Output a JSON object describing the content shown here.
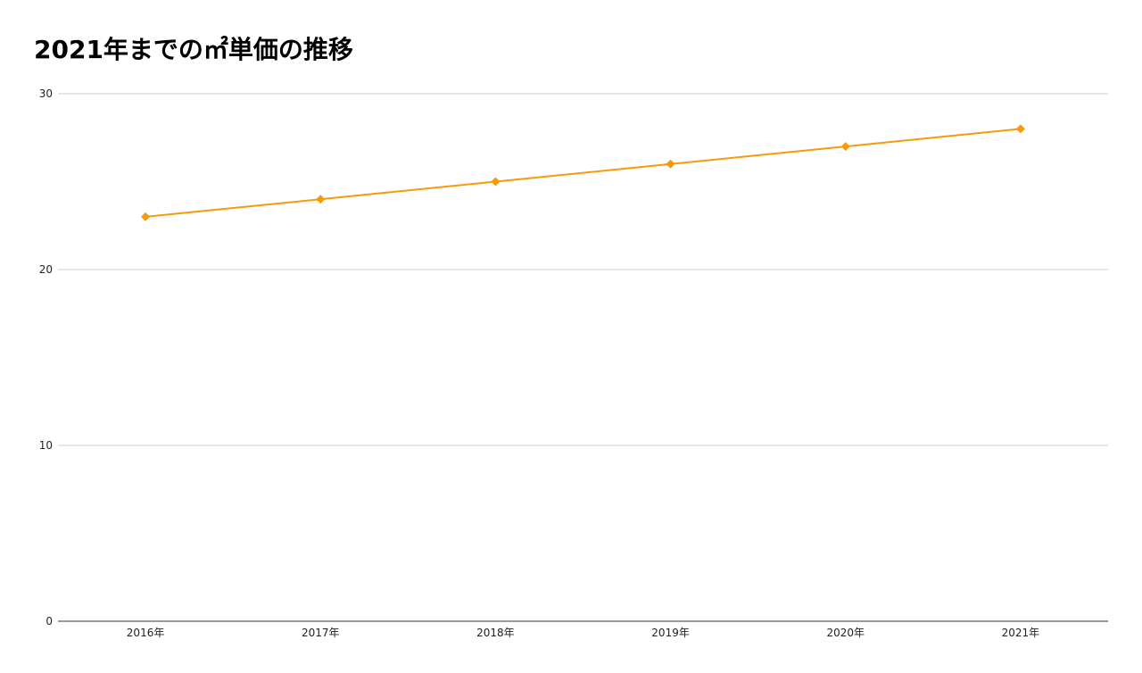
{
  "chart_data": {
    "type": "line",
    "title": "2021年までの㎡単価の推移",
    "xlabel": "",
    "ylabel": "",
    "categories": [
      "2016年",
      "2017年",
      "2018年",
      "2019年",
      "2020年",
      "2021年"
    ],
    "series": [
      {
        "values": [
          23,
          24,
          25,
          26,
          27,
          28
        ],
        "color": "#f49a0c",
        "marker": "diamond"
      }
    ],
    "ylim": [
      0,
      30
    ],
    "yticks": [
      0,
      10,
      20,
      30
    ],
    "grid": true,
    "legend": "none"
  }
}
